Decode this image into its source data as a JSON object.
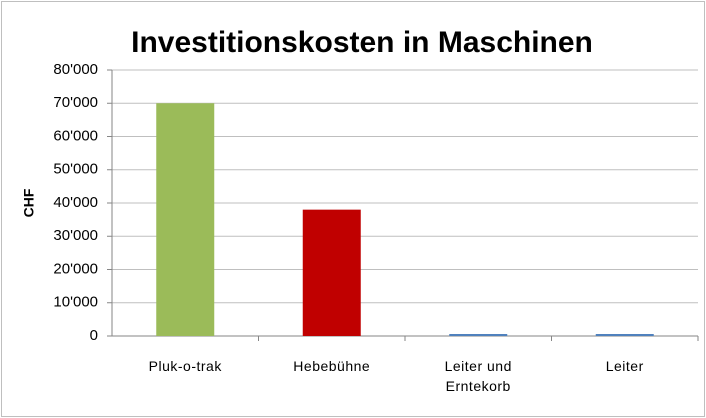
{
  "chart_data": {
    "type": "bar",
    "title": "Investitionskosten in Maschinen",
    "y_label": "CHF",
    "categories": [
      "Pluk-o-trak",
      "Hebebühne",
      "Leiter und Erntekorb",
      "Leiter"
    ],
    "values": [
      70000,
      38000,
      600,
      600
    ],
    "colors": [
      "#9bbb59",
      "#c00000",
      "#4f81bd",
      "#4f81bd"
    ],
    "ylim": [
      0,
      80000
    ],
    "yticks": [
      {
        "value": 0,
        "label": "0"
      },
      {
        "value": 10000,
        "label": "10'000"
      },
      {
        "value": 20000,
        "label": "20'000"
      },
      {
        "value": 30000,
        "label": "30'000"
      },
      {
        "value": 40000,
        "label": "40'000"
      },
      {
        "value": 50000,
        "label": "50'000"
      },
      {
        "value": 60000,
        "label": "60'000"
      },
      {
        "value": 70000,
        "label": "70'000"
      },
      {
        "value": 80000,
        "label": "80'000"
      }
    ],
    "grid": true
  }
}
